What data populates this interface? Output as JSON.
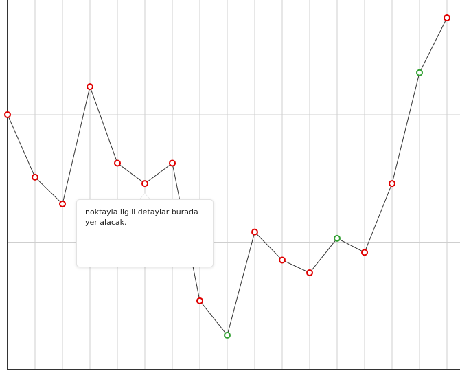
{
  "chart_data": {
    "type": "line",
    "x": [
      0,
      1,
      2,
      3,
      4,
      5,
      6,
      7,
      8,
      9,
      10,
      11,
      12,
      13,
      14,
      15,
      16
    ],
    "series": [
      {
        "color": "#333333",
        "values": [
          2.0,
          1.51,
          1.3,
          2.22,
          1.62,
          1.46,
          1.62,
          0.54,
          0.27,
          1.08,
          0.86,
          0.76,
          1.03,
          0.92,
          1.46,
          2.33,
          2.76
        ],
        "marker_colors": [
          "#e00000",
          "#e00000",
          "#e00000",
          "#e00000",
          "#e00000",
          "#e00000",
          "#e00000",
          "#e00000",
          "#33a033",
          "#e00000",
          "#e00000",
          "#e00000",
          "#33a033",
          "#e00000",
          "#e00000",
          "#33a033",
          "#e00000"
        ]
      }
    ],
    "xlim": [
      0,
      16.475
    ],
    "xticks": [
      1,
      2,
      3,
      4,
      5,
      6,
      7,
      8,
      9,
      10,
      11,
      12,
      13,
      14,
      15,
      16
    ],
    "ylim": [
      0,
      2.9
    ],
    "yticks": [
      1,
      2
    ],
    "grid": true,
    "tooltip": {
      "text": "noktayla ilgili detaylar burada yer alacak."
    }
  }
}
